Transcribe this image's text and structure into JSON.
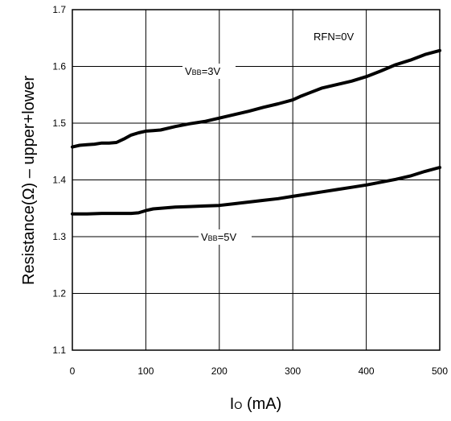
{
  "chart_data": {
    "type": "line",
    "xlabel": {
      "main": "I",
      "sub": "O",
      "unit": " (mA)"
    },
    "ylabel": "Resistance(Ω) – upper+lower",
    "xlim": [
      0,
      500
    ],
    "ylim": [
      1.1,
      1.7
    ],
    "x_ticks": [
      "0",
      "100",
      "200",
      "300",
      "400",
      "500"
    ],
    "y_ticks": [
      "1.1",
      "1.2",
      "1.3",
      "1.4",
      "1.5",
      "1.6",
      "1.7"
    ],
    "grid": true,
    "annotation": "RFN=0V",
    "series": [
      {
        "name": {
          "main": "V",
          "sub": "BB",
          "tail": "=3V"
        },
        "x": [
          0,
          10,
          20,
          30,
          40,
          50,
          60,
          70,
          80,
          90,
          100,
          110,
          120,
          140,
          160,
          180,
          200,
          220,
          240,
          260,
          280,
          300,
          310,
          320,
          340,
          360,
          380,
          400,
          420,
          440,
          460,
          480,
          500
        ],
        "values": [
          1.458,
          1.461,
          1.462,
          1.463,
          1.465,
          1.465,
          1.466,
          1.472,
          1.479,
          1.483,
          1.486,
          1.487,
          1.488,
          1.494,
          1.499,
          1.503,
          1.509,
          1.515,
          1.521,
          1.528,
          1.534,
          1.541,
          1.547,
          1.552,
          1.562,
          1.568,
          1.574,
          1.582,
          1.592,
          1.603,
          1.611,
          1.621,
          1.628
        ]
      },
      {
        "name": {
          "main": "V",
          "sub": "BB",
          "tail": "=5V"
        },
        "x": [
          0,
          20,
          40,
          60,
          80,
          90,
          100,
          110,
          120,
          140,
          160,
          180,
          200,
          220,
          240,
          260,
          280,
          300,
          320,
          340,
          360,
          380,
          400,
          420,
          440,
          460,
          480,
          500
        ],
        "values": [
          1.34,
          1.34,
          1.341,
          1.341,
          1.341,
          1.342,
          1.346,
          1.349,
          1.35,
          1.352,
          1.353,
          1.354,
          1.355,
          1.358,
          1.361,
          1.364,
          1.367,
          1.371,
          1.375,
          1.379,
          1.383,
          1.387,
          1.391,
          1.396,
          1.401,
          1.407,
          1.415,
          1.422
        ]
      }
    ]
  },
  "style": {
    "line_color": "#000000",
    "grid_color": "#000000",
    "background": "#ffffff"
  }
}
